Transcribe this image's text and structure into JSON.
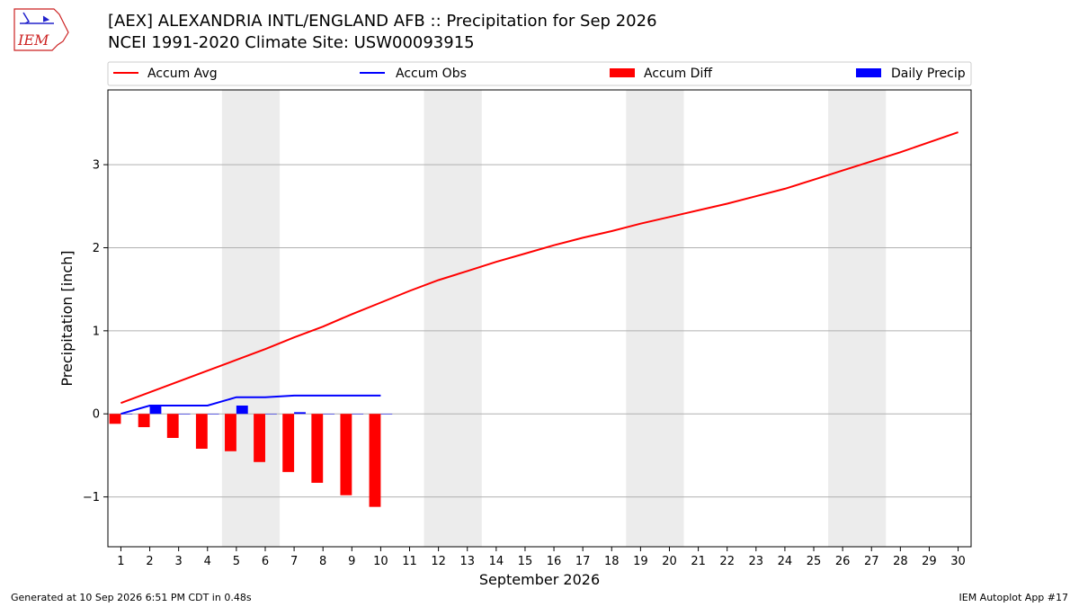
{
  "header": {
    "title": "[AEX] ALEXANDRIA INTL/ENGLAND AFB :: Precipitation for Sep 2026",
    "subtitle": "NCEI 1991-2020 Climate Site: USW00093915",
    "logo_text": "IEM"
  },
  "footer": {
    "generated": "Generated at 10 Sep 2026 6:51 PM CDT in 0.48s",
    "app": "IEM Autoplot App #17"
  },
  "colors": {
    "avg": "#ff0000",
    "obs": "#0000ff",
    "diff": "#ff0000",
    "daily": "#0000ff",
    "weekend_band": "#ececec",
    "grid": "#b0b0b0",
    "logo": "#cc2222"
  },
  "chart_data": {
    "type": "line",
    "xlabel": "September 2026",
    "ylabel": "Precipitation [inch]",
    "xlim": [
      0.55,
      30.45
    ],
    "ylim": [
      -1.6,
      3.9
    ],
    "yticks": [
      -1,
      0,
      1,
      2,
      3
    ],
    "ytick_labels": [
      "−1",
      "0",
      "1",
      "2",
      "3"
    ],
    "xticks": [
      1,
      2,
      3,
      4,
      5,
      6,
      7,
      8,
      9,
      10,
      11,
      12,
      13,
      14,
      15,
      16,
      17,
      18,
      19,
      20,
      21,
      22,
      23,
      24,
      25,
      26,
      27,
      28,
      29,
      30
    ],
    "grid": "horizontal",
    "legend": {
      "placement": "top",
      "entries": [
        {
          "label": "Accum Avg",
          "kind": "line",
          "color": "#ff0000"
        },
        {
          "label": "Accum Obs",
          "kind": "line",
          "color": "#0000ff"
        },
        {
          "label": "Accum Diff",
          "kind": "patch",
          "color": "#ff0000"
        },
        {
          "label": "Daily Precip",
          "kind": "patch",
          "color": "#0000ff"
        }
      ]
    },
    "weekend_bands": [
      [
        4.5,
        6.5
      ],
      [
        11.5,
        13.5
      ],
      [
        18.5,
        20.5
      ],
      [
        25.5,
        27.5
      ]
    ],
    "series": [
      {
        "name": "Accum Avg",
        "type": "line",
        "color": "#ff0000",
        "x": [
          1,
          2,
          3,
          4,
          5,
          6,
          7,
          8,
          9,
          10,
          11,
          12,
          13,
          14,
          15,
          16,
          17,
          18,
          19,
          20,
          21,
          22,
          23,
          24,
          25,
          26,
          27,
          28,
          29,
          30
        ],
        "values": [
          0.13,
          0.26,
          0.39,
          0.52,
          0.65,
          0.78,
          0.92,
          1.05,
          1.2,
          1.34,
          1.48,
          1.61,
          1.72,
          1.83,
          1.93,
          2.03,
          2.12,
          2.2,
          2.29,
          2.37,
          2.45,
          2.53,
          2.62,
          2.71,
          2.82,
          2.93,
          3.04,
          3.15,
          3.27,
          3.39
        ]
      },
      {
        "name": "Accum Obs",
        "type": "line",
        "color": "#0000ff",
        "x": [
          1,
          2,
          3,
          4,
          5,
          6,
          7,
          8,
          9,
          10
        ],
        "values": [
          0.0,
          0.1,
          0.1,
          0.1,
          0.2,
          0.2,
          0.22,
          0.22,
          0.22,
          0.22
        ]
      },
      {
        "name": "Accum Diff",
        "type": "bar",
        "color": "#ff0000",
        "x": [
          1,
          2,
          3,
          4,
          5,
          6,
          7,
          8,
          9,
          10
        ],
        "values": [
          -0.12,
          -0.16,
          -0.29,
          -0.42,
          -0.45,
          -0.58,
          -0.7,
          -0.83,
          -0.98,
          -1.12
        ]
      },
      {
        "name": "Daily Precip",
        "type": "bar",
        "color": "#0000ff",
        "x": [
          1,
          2,
          3,
          4,
          5,
          6,
          7,
          8,
          9,
          10
        ],
        "values": [
          0.0,
          0.1,
          0.0,
          0.0,
          0.1,
          0.0,
          0.02,
          0.0,
          0.0,
          0.0
        ]
      }
    ]
  }
}
